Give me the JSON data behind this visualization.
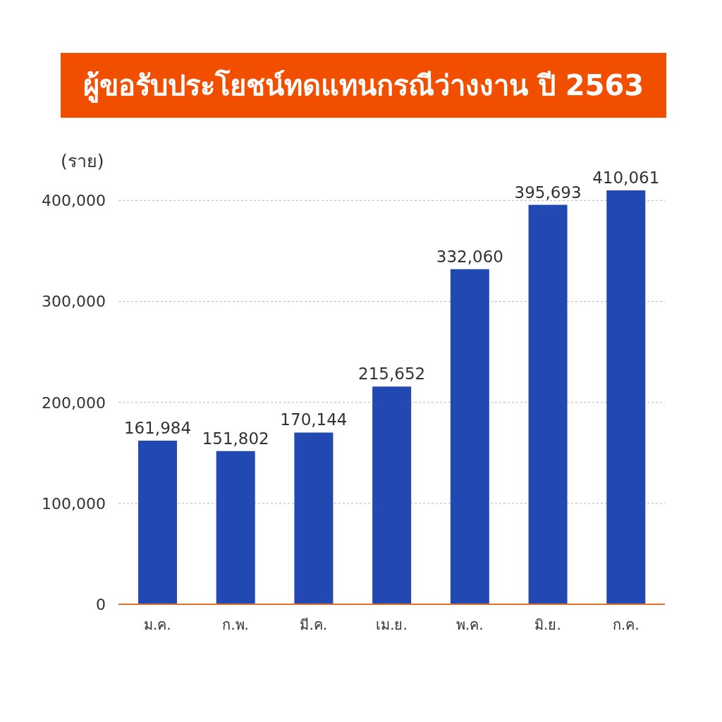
{
  "chart_data": {
    "type": "bar",
    "title": "ผู้ขอรับประโยชน์ทดแทนกรณีว่างงาน ปี 2563",
    "ylabel": "(ราย)",
    "categories": [
      "ม.ค.",
      "ก.พ.",
      "มี.ค.",
      "เม.ย.",
      "พ.ค.",
      "มิ.ย.",
      "ก.ค."
    ],
    "values": [
      161984,
      151802,
      170144,
      215652,
      332060,
      395693,
      410061
    ],
    "value_labels": [
      "161,984",
      "151,802",
      "170,144",
      "215,652",
      "332,060",
      "395,693",
      "410,061"
    ],
    "color": "#2249b1",
    "ylim": [
      0,
      410061
    ],
    "yticks": [
      0,
      {
        "value": 100000,
        "label": "100,000"
      },
      {
        "value": 200000,
        "label": "200,000"
      },
      {
        "value": 300000,
        "label": "300,000"
      },
      {
        "value": 400000,
        "label": "400,000"
      }
    ],
    "grid": "y"
  }
}
